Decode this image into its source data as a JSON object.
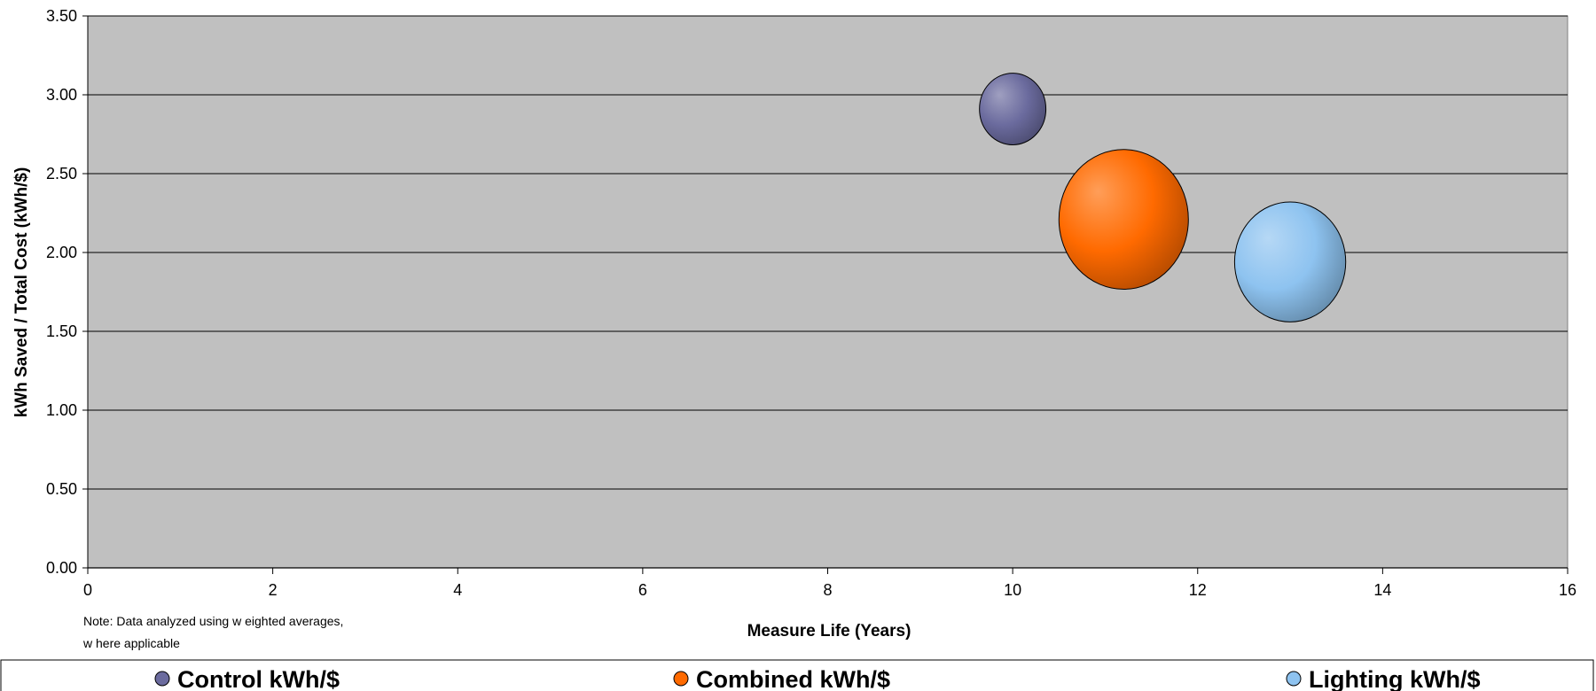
{
  "chart_data": {
    "type": "bubble",
    "xlabel": "Measure Life (Years)",
    "ylabel": "kWh Saved / Total Cost (kWh/$)",
    "xlim": [
      0,
      16
    ],
    "ylim": [
      0,
      3.5
    ],
    "x_ticks": [
      "0",
      "2",
      "4",
      "6",
      "8",
      "10",
      "12",
      "14",
      "16"
    ],
    "y_ticks": [
      "0.00",
      "0.50",
      "1.00",
      "1.50",
      "2.00",
      "2.50",
      "3.00",
      "3.50"
    ],
    "grid": "horizontal",
    "plot_background": "#c0c0c0",
    "legend_position": "bottom",
    "note": [
      "Note: Data analyzed using w eighted averages,",
      "w here applicable"
    ],
    "series": [
      {
        "name": "Control kWh/$",
        "x": 10.0,
        "y": 2.91,
        "size": 1.0,
        "color": "#6b6b9e"
      },
      {
        "name": "Combined kWh/$",
        "x": 11.2,
        "y": 2.21,
        "size": 3.8,
        "color": "#ff6a00"
      },
      {
        "name": "Lighting kWh/$",
        "x": 13.0,
        "y": 1.94,
        "size": 2.8,
        "color": "#8ec3f0"
      }
    ]
  }
}
